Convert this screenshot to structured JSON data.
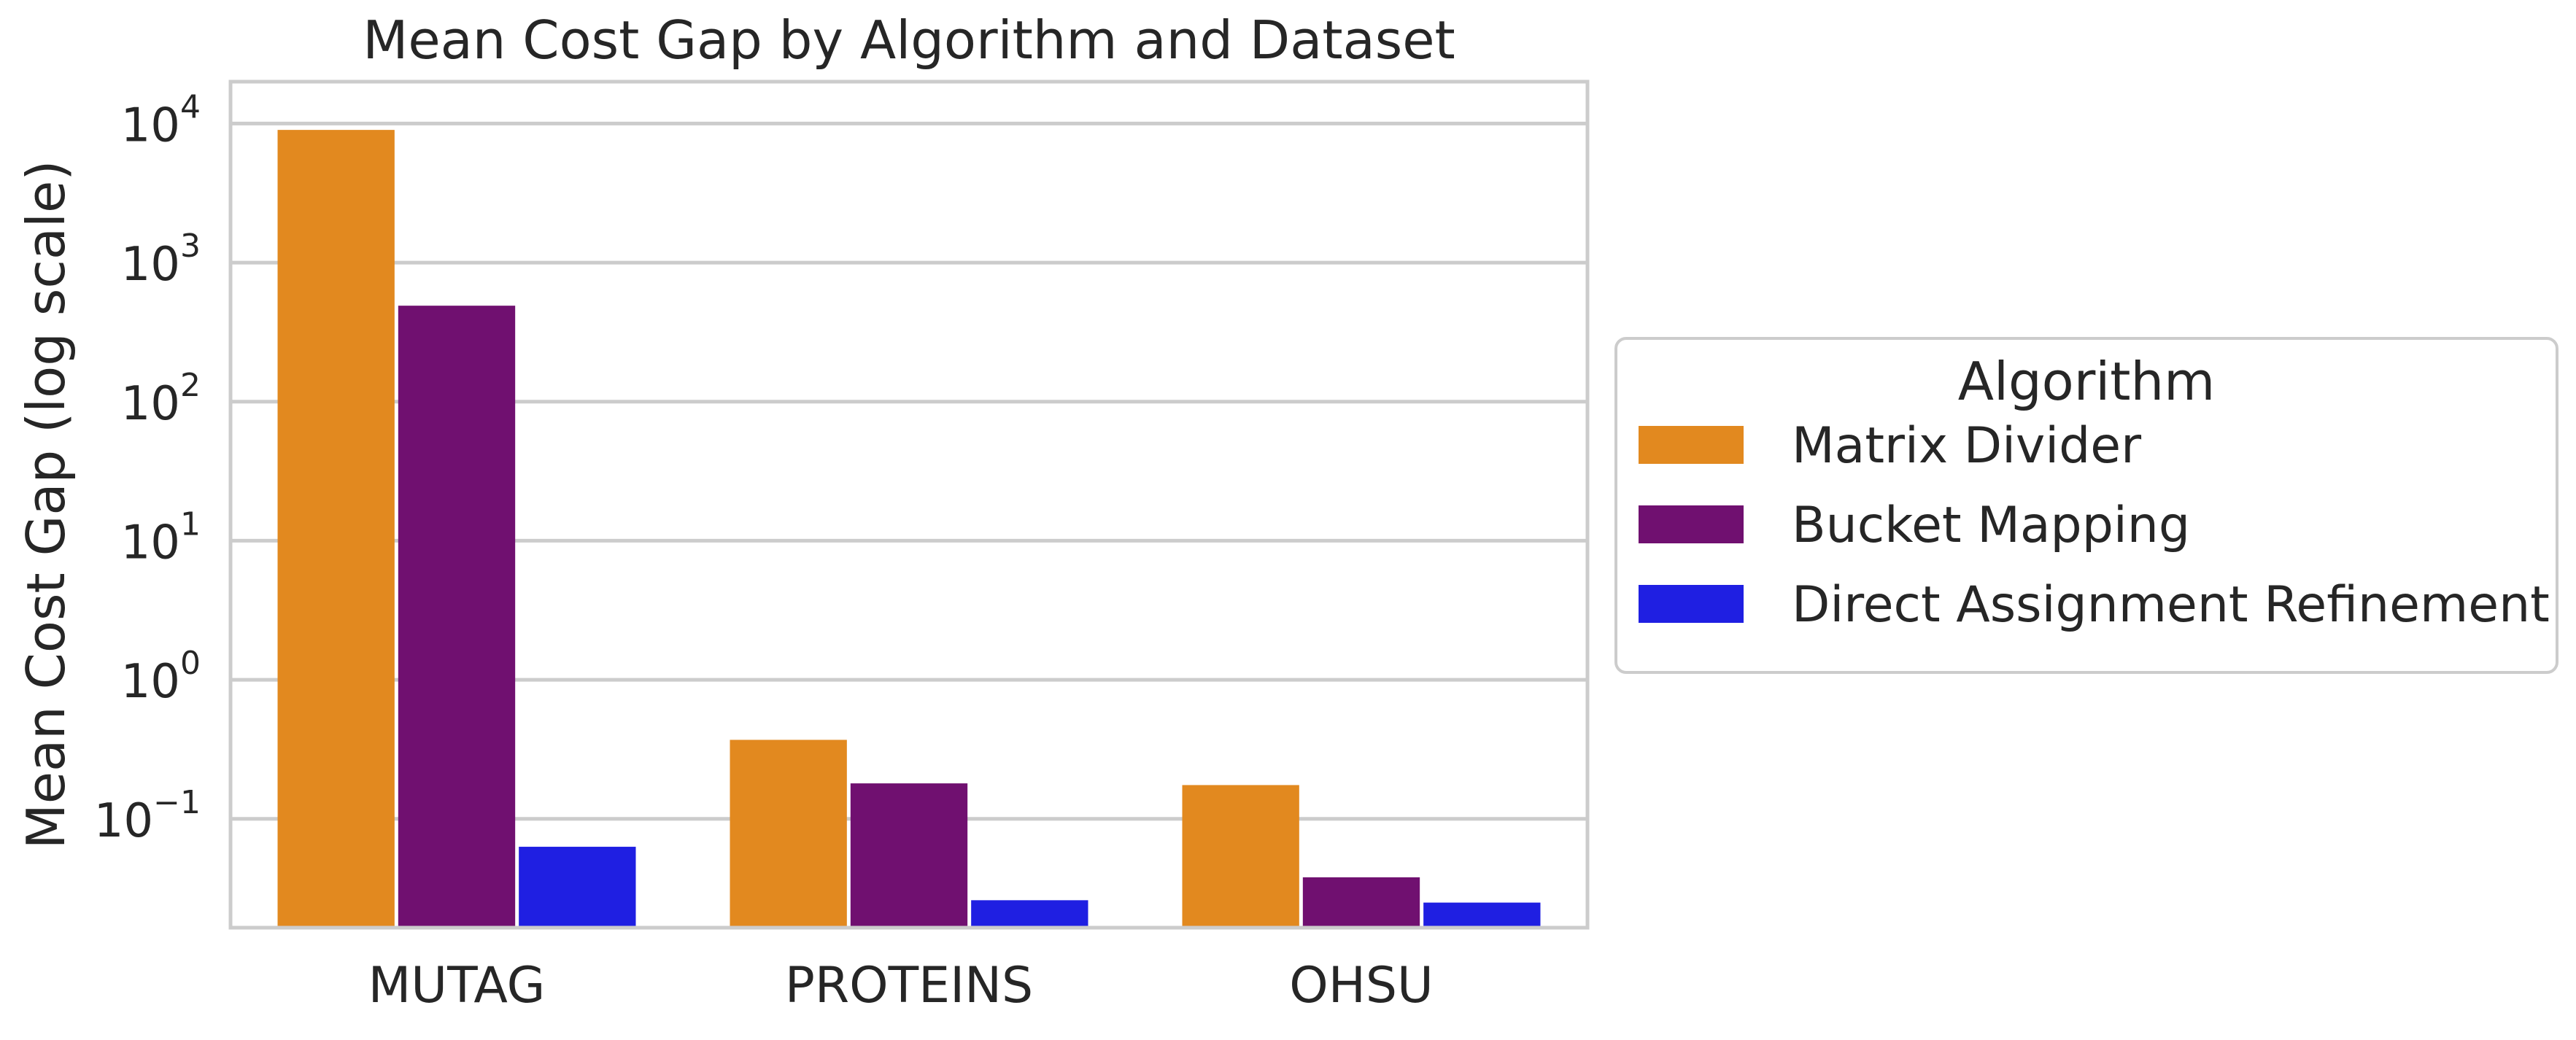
{
  "chart_data": {
    "type": "bar",
    "title": "Mean Cost Gap by Algorithm and Dataset",
    "xlabel": "",
    "ylabel": "Mean Cost Gap (log scale)",
    "yscale": "log",
    "ylim": [
      0.0165,
      20000
    ],
    "yticks": [
      {
        "value": 0.1,
        "base": "10",
        "exp": "−1"
      },
      {
        "value": 1,
        "base": "10",
        "exp": "0"
      },
      {
        "value": 10,
        "base": "10",
        "exp": "1"
      },
      {
        "value": 100,
        "base": "10",
        "exp": "2"
      },
      {
        "value": 1000,
        "base": "10",
        "exp": "3"
      },
      {
        "value": 10000,
        "base": "10",
        "exp": "4"
      }
    ],
    "grid": "horizontal",
    "categories": [
      "MUTAG",
      "PROTEINS",
      "OHSU"
    ],
    "series": [
      {
        "name": "Matrix Divider",
        "color": "#E2891F",
        "values": [
          9000,
          0.37,
          0.175
        ]
      },
      {
        "name": "Bucket Mapping",
        "color": "#701070",
        "values": [
          490,
          0.18,
          0.038
        ]
      },
      {
        "name": "Direct Assignment Refinement",
        "color": "#1F1FE2",
        "values": [
          0.063,
          0.026,
          0.025
        ]
      }
    ],
    "legend": {
      "title": "Algorithm",
      "placement": "right"
    }
  }
}
